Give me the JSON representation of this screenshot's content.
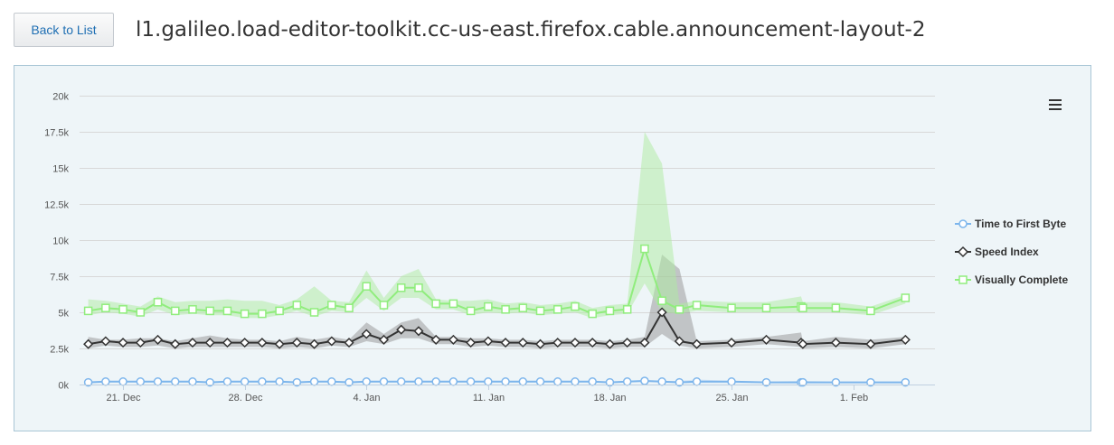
{
  "header": {
    "back_label": "Back to List",
    "title": "l1.galileo.load-editor-toolkit.cc-us-east.firefox.cable.announcement-layout-2"
  },
  "chart_data": {
    "type": "line",
    "title": "",
    "xlabel": "",
    "ylabel": "",
    "ylim": [
      0,
      20000
    ],
    "y_ticks": [
      0,
      2500,
      5000,
      7500,
      10000,
      12500,
      15000,
      17500,
      20000
    ],
    "y_tick_labels": [
      "0k",
      "2.5k",
      "5k",
      "7.5k",
      "10k",
      "12.5k",
      "15k",
      "17.5k",
      "20k"
    ],
    "x_tick_labels": [
      {
        "day": 2,
        "label": "21. Dec"
      },
      {
        "day": 9,
        "label": "28. Dec"
      },
      {
        "day": 16,
        "label": "4. Jan"
      },
      {
        "day": 23,
        "label": "11. Jan"
      },
      {
        "day": 30,
        "label": "18. Jan"
      },
      {
        "day": 37,
        "label": "25. Jan"
      },
      {
        "day": 44,
        "label": "1. Feb"
      }
    ],
    "xlim": [
      -0.5,
      48.7
    ],
    "grid": true,
    "legend_position": "right",
    "x": [
      0,
      1,
      2,
      3,
      4,
      5,
      6,
      7,
      8,
      9,
      10,
      11,
      12,
      13,
      14,
      15,
      16,
      17,
      18,
      19,
      20,
      21,
      22,
      23,
      24,
      25,
      26,
      27,
      28,
      29,
      30,
      31,
      32,
      33,
      34,
      35,
      37,
      39,
      41,
      41.1,
      43,
      45,
      47
    ],
    "series": [
      {
        "name": "Time to First Byte",
        "color": "#7cb5ec",
        "marker": "circle",
        "values": [
          150,
          200,
          200,
          200,
          200,
          200,
          200,
          150,
          200,
          200,
          200,
          200,
          150,
          200,
          200,
          150,
          200,
          200,
          200,
          200,
          200,
          200,
          200,
          200,
          200,
          200,
          200,
          200,
          200,
          200,
          150,
          200,
          250,
          200,
          150,
          200,
          200,
          150,
          150,
          150,
          150,
          150,
          150
        ],
        "range_low": [
          100,
          150,
          150,
          150,
          150,
          150,
          150,
          100,
          150,
          150,
          150,
          150,
          100,
          150,
          150,
          100,
          150,
          150,
          150,
          150,
          150,
          150,
          150,
          150,
          150,
          150,
          150,
          150,
          150,
          150,
          100,
          150,
          200,
          150,
          100,
          100,
          100,
          100,
          100,
          100,
          100,
          100,
          100
        ],
        "range_high": [
          200,
          250,
          250,
          250,
          250,
          250,
          250,
          200,
          250,
          250,
          250,
          250,
          200,
          250,
          250,
          200,
          250,
          250,
          250,
          250,
          250,
          250,
          250,
          250,
          250,
          250,
          250,
          250,
          250,
          250,
          200,
          250,
          300,
          250,
          250,
          350,
          250,
          200,
          250,
          250,
          200,
          200,
          200
        ]
      },
      {
        "name": "Speed Index",
        "color": "#333333",
        "marker": "diamond",
        "values": [
          2800,
          3000,
          2900,
          2900,
          3100,
          2800,
          2900,
          2900,
          2900,
          2900,
          2900,
          2800,
          2900,
          2800,
          3000,
          2900,
          3500,
          3100,
          3800,
          3700,
          3100,
          3100,
          2900,
          3000,
          2900,
          2900,
          2800,
          2900,
          2900,
          2900,
          2800,
          2900,
          2900,
          5000,
          3000,
          2800,
          2900,
          3100,
          2900,
          2800,
          2900,
          2800,
          3100
        ],
        "range_low": [
          2500,
          2700,
          2600,
          2600,
          2700,
          2500,
          2600,
          2600,
          2600,
          2600,
          2600,
          2500,
          2600,
          2500,
          2700,
          2600,
          3000,
          2800,
          3200,
          3200,
          2800,
          2800,
          2600,
          2700,
          2600,
          2600,
          2500,
          2600,
          2600,
          2600,
          2500,
          2600,
          2600,
          3500,
          2700,
          2500,
          2600,
          2800,
          2600,
          2500,
          2600,
          2500,
          2800
        ],
        "range_high": [
          3300,
          3100,
          3100,
          3200,
          3200,
          3000,
          3200,
          3400,
          3200,
          3100,
          3100,
          3000,
          3300,
          3100,
          3300,
          3100,
          4300,
          3500,
          4300,
          4600,
          3300,
          3300,
          3200,
          3200,
          3100,
          3100,
          3000,
          3100,
          3100,
          3100,
          3000,
          3100,
          3300,
          9000,
          8000,
          3000,
          3100,
          3300,
          3600,
          3000,
          3300,
          3100,
          3300
        ]
      },
      {
        "name": "Visually Complete",
        "color": "#90ed7d",
        "marker": "square",
        "values": [
          5100,
          5300,
          5200,
          5000,
          5700,
          5100,
          5200,
          5100,
          5100,
          4900,
          4900,
          5100,
          5500,
          5000,
          5500,
          5300,
          6800,
          5500,
          6700,
          6700,
          5600,
          5600,
          5100,
          5400,
          5200,
          5300,
          5100,
          5200,
          5400,
          4900,
          5100,
          5200,
          9400,
          5800,
          5200,
          5500,
          5300,
          5300,
          5400,
          5300,
          5300,
          5100,
          6000
        ],
        "range_low": [
          4800,
          5000,
          4900,
          4700,
          5200,
          4800,
          4900,
          4800,
          4800,
          4600,
          4600,
          4800,
          5100,
          4700,
          5100,
          5000,
          6000,
          5100,
          6000,
          6000,
          5200,
          5200,
          4800,
          5000,
          4900,
          5000,
          4800,
          4900,
          5000,
          4600,
          4800,
          4900,
          7000,
          5000,
          4900,
          5100,
          5000,
          5000,
          5000,
          5000,
          5000,
          4800,
          5600
        ],
        "range_high": [
          5900,
          5800,
          5600,
          5400,
          6100,
          5700,
          5800,
          5800,
          5900,
          5800,
          5800,
          5500,
          5900,
          6800,
          5800,
          5700,
          7900,
          6000,
          7500,
          8000,
          5900,
          5800,
          5800,
          5900,
          5600,
          5700,
          5500,
          5600,
          5800,
          5300,
          5500,
          5600,
          17500,
          15300,
          5600,
          5800,
          5700,
          5700,
          6100,
          5700,
          5700,
          5400,
          6200
        ]
      }
    ]
  }
}
